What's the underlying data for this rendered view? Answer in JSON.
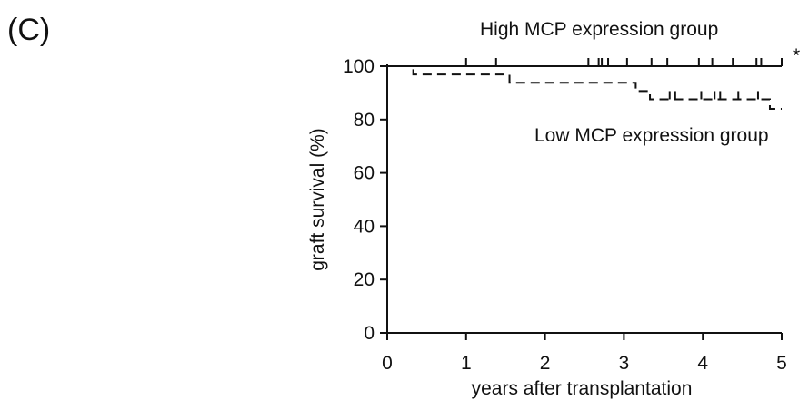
{
  "panel_label": "(C)",
  "significance_marker": "*",
  "chart_data": {
    "type": "line",
    "subtype": "kaplan-meier",
    "xlabel": "years after transplantation",
    "ylabel": "graft survival (%)",
    "xlim": [
      0,
      5
    ],
    "ylim": [
      0,
      100
    ],
    "xticks": [
      "0",
      "1",
      "2",
      "3",
      "4",
      "5"
    ],
    "yticks": [
      "0",
      "20",
      "40",
      "60",
      "80",
      "100"
    ],
    "grid": false,
    "series": [
      {
        "name": "High MCP expression group",
        "style": "solid",
        "color": "#111111",
        "steps": [
          [
            0,
            100
          ],
          [
            5,
            100
          ]
        ],
        "censored": [
          1.0,
          1.38,
          2.55,
          2.68,
          2.72,
          2.8,
          3.04,
          3.35,
          3.55,
          3.95,
          4.12,
          4.38,
          4.68,
          4.74,
          5.0
        ]
      },
      {
        "name": "Low MCP expression group",
        "style": "dashed",
        "color": "#111111",
        "steps": [
          [
            0,
            100
          ],
          [
            0.33,
            96.9
          ],
          [
            1.55,
            93.8
          ],
          [
            3.15,
            90.7
          ],
          [
            3.33,
            87.6
          ],
          [
            4.85,
            84.0
          ],
          [
            5,
            84.0
          ]
        ],
        "censored": [
          3.58,
          3.65,
          3.98,
          4.15,
          4.22,
          4.45,
          4.7
        ]
      }
    ]
  }
}
